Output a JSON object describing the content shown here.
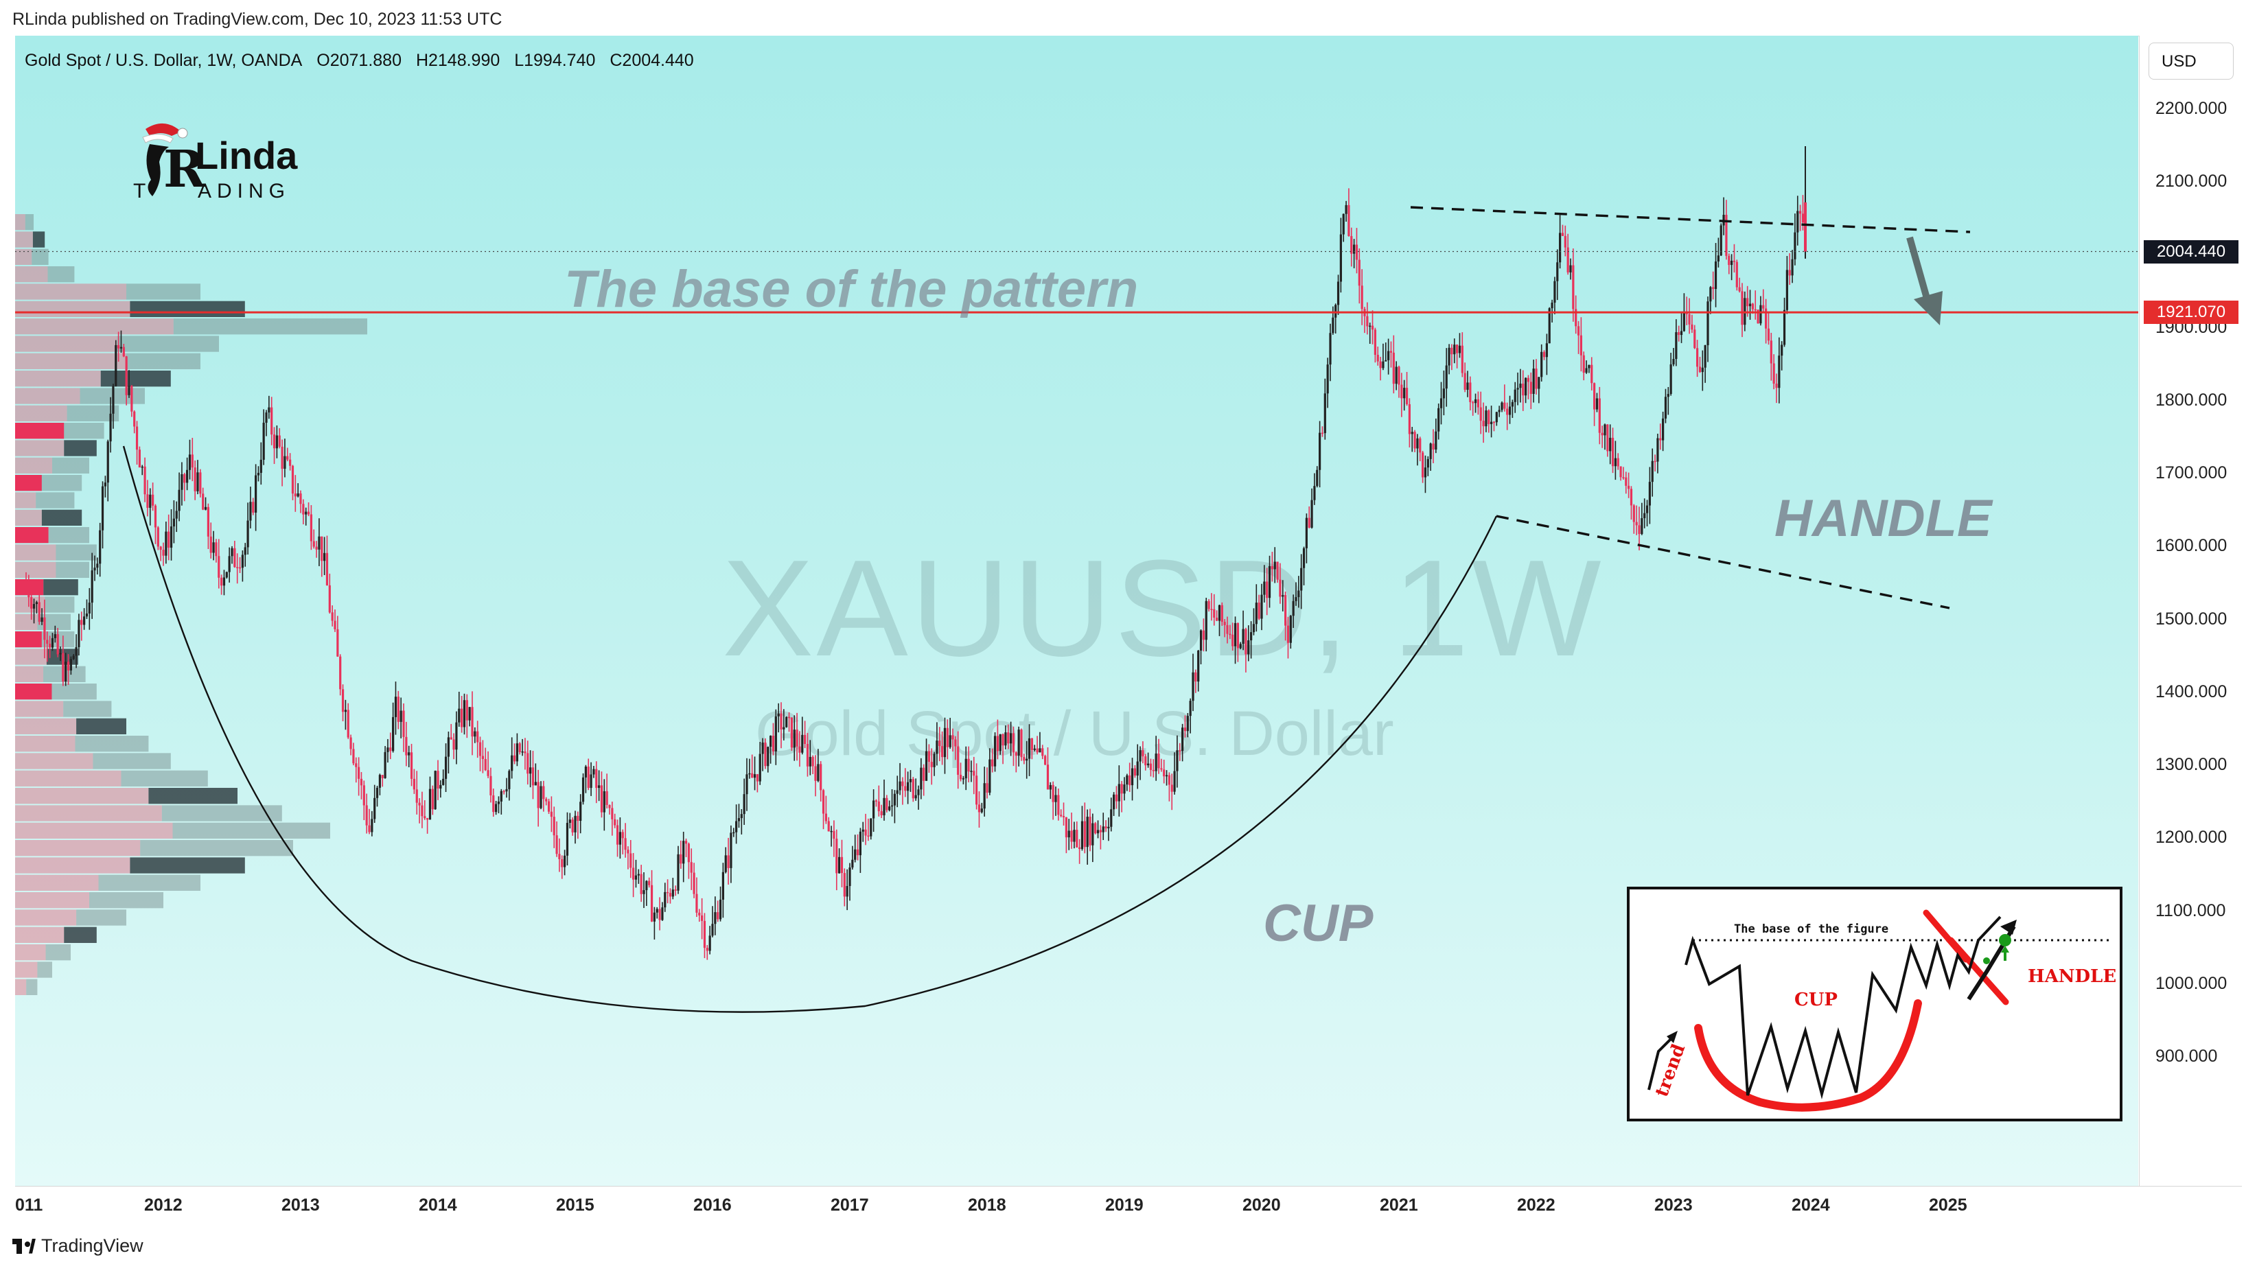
{
  "header": {
    "published": "RLinda published on TradingView.com, Dec 10, 2023 11:53 UTC"
  },
  "legend": {
    "symbol": "Gold Spot / U.S. Dollar, 1W, OANDA",
    "open": "O2071.880",
    "high": "H2148.990",
    "low": "L1994.740",
    "close": "C2004.440"
  },
  "currency_button": "USD",
  "price_tags": {
    "last": "2004.440",
    "level": "1921.070"
  },
  "watermark": {
    "ticker": "XAUUSD, 1W",
    "name": "Gold Spot / U.S. Dollar"
  },
  "annotations": {
    "base": "The base of the pattern",
    "cup": "CUP",
    "handle": "HANDLE"
  },
  "logo": {
    "text_top": "Linda",
    "text_bottom": "ADING",
    "initial": "R",
    "letter": "T"
  },
  "inset": {
    "base": "The base of the figure",
    "cup": "CUP",
    "handle": "HANDLE",
    "trend": "trend"
  },
  "footer": {
    "brand": "TradingView"
  },
  "colors": {
    "up": "#222222",
    "down": "#e8325a",
    "level": "#e52d2d",
    "bg_top": "#a8ecea"
  },
  "chart_data": {
    "type": "candlestick",
    "symbol": "XAUUSD",
    "timeframe": "1W",
    "y_ticks": [
      900,
      1000,
      1100,
      1200,
      1300,
      1400,
      1500,
      1600,
      1700,
      1800,
      1900,
      2000,
      2100,
      2200
    ],
    "y_tick_labels": [
      "900.000",
      "1000.000",
      "1100.000",
      "1200.000",
      "1300.000",
      "1400.000",
      "1500.000",
      "1600.000",
      "1700.000",
      "1800.000",
      "1900.000",
      "2000.000",
      "2100.000",
      "2200.000"
    ],
    "x_ticks": [
      "011",
      "2012",
      "2013",
      "2014",
      "2015",
      "2016",
      "2017",
      "2018",
      "2019",
      "2020",
      "2021",
      "2022",
      "2023",
      "2024",
      "2025"
    ],
    "last_price": 2004.44,
    "horizontal_level": 1921.07,
    "price_path": [
      [
        2011.0,
        1550
      ],
      [
        2011.3,
        1420
      ],
      [
        2011.5,
        1560
      ],
      [
        2011.67,
        1890
      ],
      [
        2011.85,
        1700
      ],
      [
        2012.0,
        1590
      ],
      [
        2012.2,
        1720
      ],
      [
        2012.4,
        1560
      ],
      [
        2012.6,
        1600
      ],
      [
        2012.75,
        1780
      ],
      [
        2012.95,
        1680
      ],
      [
        2013.15,
        1600
      ],
      [
        2013.3,
        1400
      ],
      [
        2013.5,
        1210
      ],
      [
        2013.7,
        1380
      ],
      [
        2013.9,
        1230
      ],
      [
        2014.2,
        1380
      ],
      [
        2014.4,
        1250
      ],
      [
        2014.6,
        1320
      ],
      [
        2014.9,
        1180
      ],
      [
        2015.1,
        1290
      ],
      [
        2015.4,
        1170
      ],
      [
        2015.6,
        1090
      ],
      [
        2015.8,
        1180
      ],
      [
        2015.97,
        1050
      ],
      [
        2016.2,
        1250
      ],
      [
        2016.5,
        1360
      ],
      [
        2016.75,
        1300
      ],
      [
        2016.95,
        1130
      ],
      [
        2017.2,
        1250
      ],
      [
        2017.45,
        1270
      ],
      [
        2017.7,
        1340
      ],
      [
        2017.95,
        1250
      ],
      [
        2018.1,
        1350
      ],
      [
        2018.4,
        1300
      ],
      [
        2018.6,
        1200
      ],
      [
        2018.85,
        1220
      ],
      [
        2019.1,
        1310
      ],
      [
        2019.35,
        1280
      ],
      [
        2019.6,
        1510
      ],
      [
        2019.9,
        1470
      ],
      [
        2020.1,
        1580
      ],
      [
        2020.2,
        1480
      ],
      [
        2020.4,
        1700
      ],
      [
        2020.6,
        2060
      ],
      [
        2020.8,
        1880
      ],
      [
        2021.0,
        1830
      ],
      [
        2021.2,
        1690
      ],
      [
        2021.4,
        1900
      ],
      [
        2021.55,
        1780
      ],
      [
        2021.8,
        1790
      ],
      [
        2022.05,
        1850
      ],
      [
        2022.18,
        2050
      ],
      [
        2022.35,
        1850
      ],
      [
        2022.55,
        1720
      ],
      [
        2022.75,
        1630
      ],
      [
        2022.9,
        1740
      ],
      [
        2023.05,
        1920
      ],
      [
        2023.2,
        1850
      ],
      [
        2023.35,
        2050
      ],
      [
        2023.5,
        1920
      ],
      [
        2023.65,
        1920
      ],
      [
        2023.75,
        1820
      ],
      [
        2023.85,
        2000
      ],
      [
        2023.93,
        2070
      ],
      [
        2023.96,
        2004.44
      ]
    ],
    "volume_profile": {
      "bins_from_top": 45,
      "sell_share": [
        0.55,
        0.6,
        0.5,
        0.55,
        0.6,
        0.5,
        0.45,
        0.5,
        0.6,
        0.55,
        0.5,
        0.5,
        0.55,
        0.6,
        0.5,
        0.4,
        0.35,
        0.4,
        0.45,
        0.5,
        0.55,
        0.45,
        0.5,
        0.4,
        0.45,
        0.5,
        0.4,
        0.45,
        0.5,
        0.55,
        0.45,
        0.5,
        0.55,
        0.6,
        0.55,
        0.5,
        0.45,
        0.5,
        0.45,
        0.5,
        0.55,
        0.6,
        0.55,
        0.6,
        0.5
      ],
      "volume": [
        0.05,
        0.08,
        0.09,
        0.16,
        0.5,
        0.62,
        0.95,
        0.55,
        0.5,
        0.42,
        0.35,
        0.28,
        0.24,
        0.22,
        0.2,
        0.18,
        0.16,
        0.18,
        0.2,
        0.22,
        0.2,
        0.17,
        0.16,
        0.15,
        0.16,
        0.17,
        0.19,
        0.22,
        0.26,
        0.3,
        0.36,
        0.42,
        0.52,
        0.6,
        0.72,
        0.85,
        0.75,
        0.62,
        0.5,
        0.4,
        0.3,
        0.22,
        0.15,
        0.1,
        0.06
      ]
    }
  }
}
